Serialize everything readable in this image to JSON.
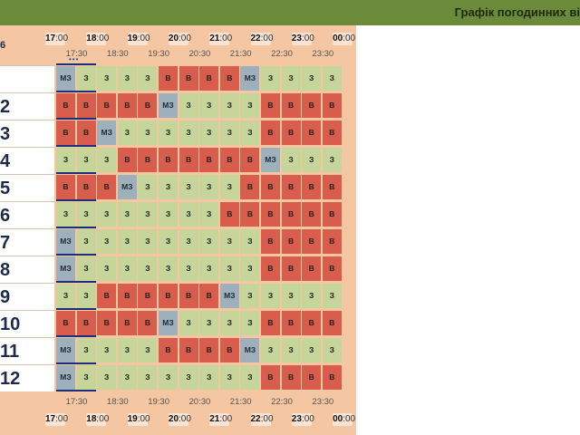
{
  "title": "Графік погодинних ві",
  "corner_label": "6",
  "hours": [
    {
      "h": "17",
      "m": ":00"
    },
    {
      "h": "18",
      "m": ":00"
    },
    {
      "h": "19",
      "m": ":00"
    },
    {
      "h": "20",
      "m": ":00"
    },
    {
      "h": "21",
      "m": ":00"
    },
    {
      "h": "22",
      "m": ":00"
    },
    {
      "h": "23",
      "m": ":00"
    },
    {
      "h": "00",
      "m": ":00"
    }
  ],
  "half_hours": [
    "17:30",
    "18:30",
    "19:30",
    "20:30",
    "21:30",
    "22:30",
    "23:30"
  ],
  "now_marker": "•••",
  "legend": {
    "z": "З",
    "v": "В",
    "m": "МЗ"
  },
  "rows": [
    {
      "label": "",
      "cells": [
        "m",
        "z",
        "z",
        "z",
        "z",
        "v",
        "v",
        "v",
        "v",
        "m",
        "z",
        "z",
        "z",
        "z"
      ]
    },
    {
      "label": "2",
      "cells": [
        "v",
        "v",
        "v",
        "v",
        "v",
        "m",
        "z",
        "z",
        "z",
        "z",
        "v",
        "v",
        "v",
        "v"
      ]
    },
    {
      "label": "3",
      "cells": [
        "v",
        "v",
        "m",
        "z",
        "z",
        "z",
        "z",
        "z",
        "z",
        "z",
        "v",
        "v",
        "v",
        "v"
      ]
    },
    {
      "label": "4",
      "cells": [
        "z",
        "z",
        "z",
        "v",
        "v",
        "v",
        "v",
        "v",
        "v",
        "v",
        "m",
        "z",
        "z",
        "z"
      ]
    },
    {
      "label": "5",
      "cells": [
        "v",
        "v",
        "v",
        "m",
        "z",
        "z",
        "z",
        "z",
        "z",
        "v",
        "v",
        "v",
        "v",
        "v"
      ]
    },
    {
      "label": "6",
      "cells": [
        "z",
        "z",
        "z",
        "z",
        "z",
        "z",
        "z",
        "z",
        "v",
        "v",
        "v",
        "v",
        "v",
        "v"
      ]
    },
    {
      "label": "7",
      "cells": [
        "m",
        "z",
        "z",
        "z",
        "z",
        "z",
        "z",
        "z",
        "z",
        "z",
        "v",
        "v",
        "v",
        "v"
      ]
    },
    {
      "label": "8",
      "cells": [
        "m",
        "z",
        "z",
        "z",
        "z",
        "z",
        "z",
        "z",
        "z",
        "z",
        "v",
        "v",
        "v",
        "v"
      ]
    },
    {
      "label": "9",
      "cells": [
        "z",
        "z",
        "v",
        "v",
        "v",
        "v",
        "v",
        "v",
        "m",
        "z",
        "z",
        "z",
        "z",
        "z"
      ]
    },
    {
      "label": "10",
      "cells": [
        "v",
        "v",
        "v",
        "v",
        "v",
        "m",
        "z",
        "z",
        "z",
        "z",
        "v",
        "v",
        "v",
        "v"
      ]
    },
    {
      "label": "11",
      "cells": [
        "m",
        "z",
        "z",
        "z",
        "z",
        "v",
        "v",
        "v",
        "v",
        "m",
        "z",
        "z",
        "z",
        "z"
      ]
    },
    {
      "label": "12",
      "cells": [
        "m",
        "z",
        "z",
        "z",
        "z",
        "z",
        "z",
        "z",
        "z",
        "z",
        "v",
        "v",
        "v",
        "v"
      ]
    }
  ],
  "colors": {
    "z": "#c6d59a",
    "v": "#d95d4c",
    "m": "#9fb0bd",
    "header": "#6b8a3a",
    "sheet": "#f4c6a2"
  }
}
